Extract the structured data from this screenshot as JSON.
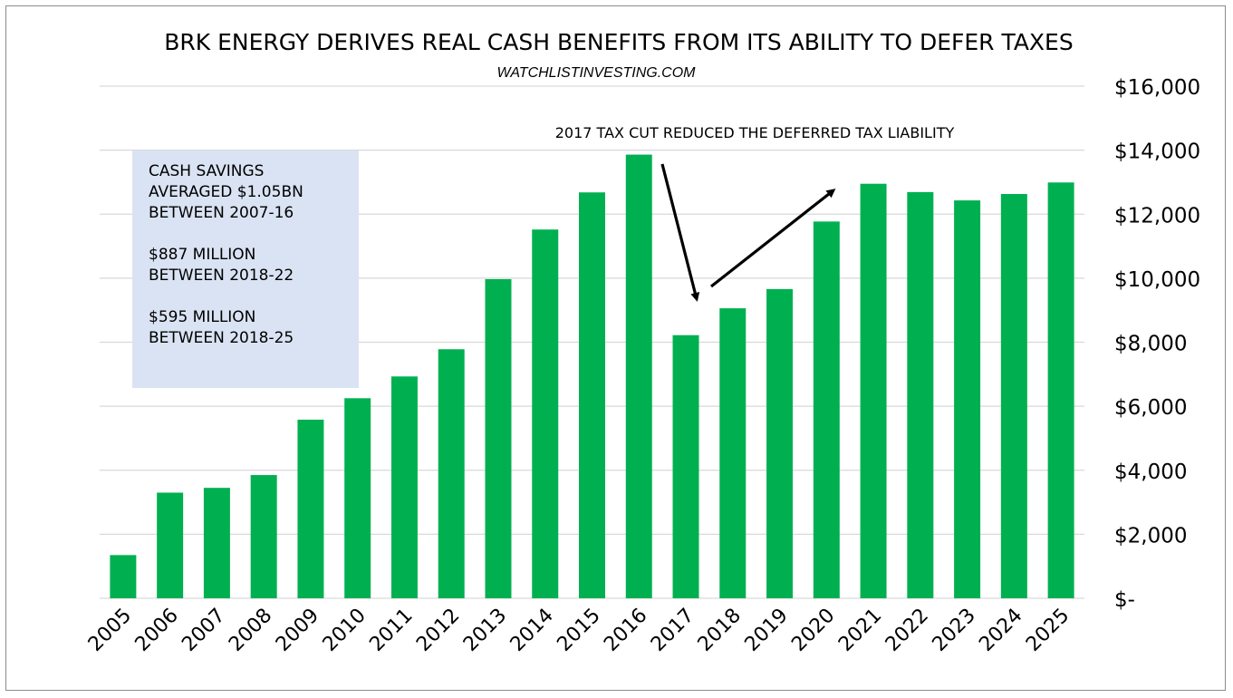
{
  "chart_data": {
    "type": "bar",
    "title": "BRK ENERGY DERIVES REAL CASH BENEFITS FROM ITS ABILITY TO DEFER TAXES",
    "subtitle": "WATCHLISTINVESTING.COM",
    "categories": [
      "2005",
      "2006",
      "2007",
      "2008",
      "2009",
      "2010",
      "2011",
      "2012",
      "2013",
      "2014",
      "2015",
      "2016",
      "2017",
      "2018",
      "2019",
      "2020",
      "2021",
      "2022",
      "2023",
      "2024",
      "2025"
    ],
    "values": [
      1350,
      3300,
      3450,
      3850,
      5580,
      6250,
      6930,
      7780,
      9970,
      11520,
      12680,
      13860,
      8220,
      9060,
      9660,
      11770,
      12950,
      12690,
      12430,
      12630,
      12990
    ],
    "ylim": [
      0,
      16000
    ],
    "yticks": [
      0,
      2000,
      4000,
      6000,
      8000,
      10000,
      12000,
      14000,
      16000
    ],
    "ytick_labels": [
      "$-",
      "$2,000",
      "$4,000",
      "$6,000",
      "$8,000",
      "$10,000",
      "$12,000",
      "$14,000",
      "$16,000"
    ],
    "y_axis_side": "right",
    "grid": true,
    "bar_color": "#00b050",
    "annotation": "2017 TAX CUT REDUCED THE DEFERRED TAX LIABILITY",
    "info_box": {
      "lines": [
        "CASH SAVINGS",
        "AVERAGED $1.05BN",
        "BETWEEN 2007-16",
        "",
        "$887 MILLION",
        "BETWEEN 2018-22",
        "",
        "$595 MILLION",
        "BETWEEN 2018-25"
      ],
      "background": "#dae3f3"
    }
  }
}
